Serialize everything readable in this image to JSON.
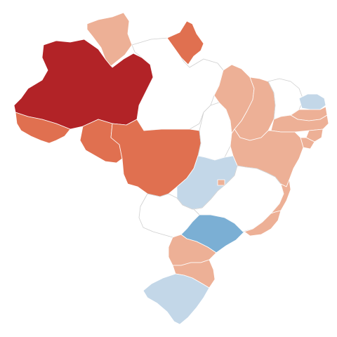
{
  "map": {
    "region": "Brazil",
    "scale_colors": {
      "dark_red": "#b22327",
      "red": "#e07050",
      "light_red": "#edb096",
      "light_blue": "#c3d7e8",
      "blue": "#7bafd4",
      "no_color": "#ffffff"
    },
    "states": [
      {
        "id": "AM",
        "level": "dark_red"
      },
      {
        "id": "AC",
        "level": "red"
      },
      {
        "id": "RO",
        "level": "red"
      },
      {
        "id": "MT",
        "level": "red"
      },
      {
        "id": "AP",
        "level": "red"
      },
      {
        "id": "RR",
        "level": "light_red"
      },
      {
        "id": "PA",
        "level": "no_color"
      },
      {
        "id": "TO",
        "level": "no_color"
      },
      {
        "id": "MA",
        "level": "light_red"
      },
      {
        "id": "PI",
        "level": "light_red"
      },
      {
        "id": "CE",
        "level": "no_color"
      },
      {
        "id": "RN",
        "level": "light_blue"
      },
      {
        "id": "PB",
        "level": "light_red"
      },
      {
        "id": "PE",
        "level": "light_red"
      },
      {
        "id": "AL",
        "level": "light_red"
      },
      {
        "id": "SE",
        "level": "light_red"
      },
      {
        "id": "BA",
        "level": "light_red"
      },
      {
        "id": "GO",
        "level": "light_blue"
      },
      {
        "id": "DF",
        "level": "light_red"
      },
      {
        "id": "MG",
        "level": "no_color"
      },
      {
        "id": "ES",
        "level": "light_red"
      },
      {
        "id": "RJ",
        "level": "light_red"
      },
      {
        "id": "MS",
        "level": "no_color"
      },
      {
        "id": "SP",
        "level": "blue"
      },
      {
        "id": "PR",
        "level": "light_red"
      },
      {
        "id": "SC",
        "level": "light_red"
      },
      {
        "id": "RS",
        "level": "light_blue"
      }
    ]
  }
}
